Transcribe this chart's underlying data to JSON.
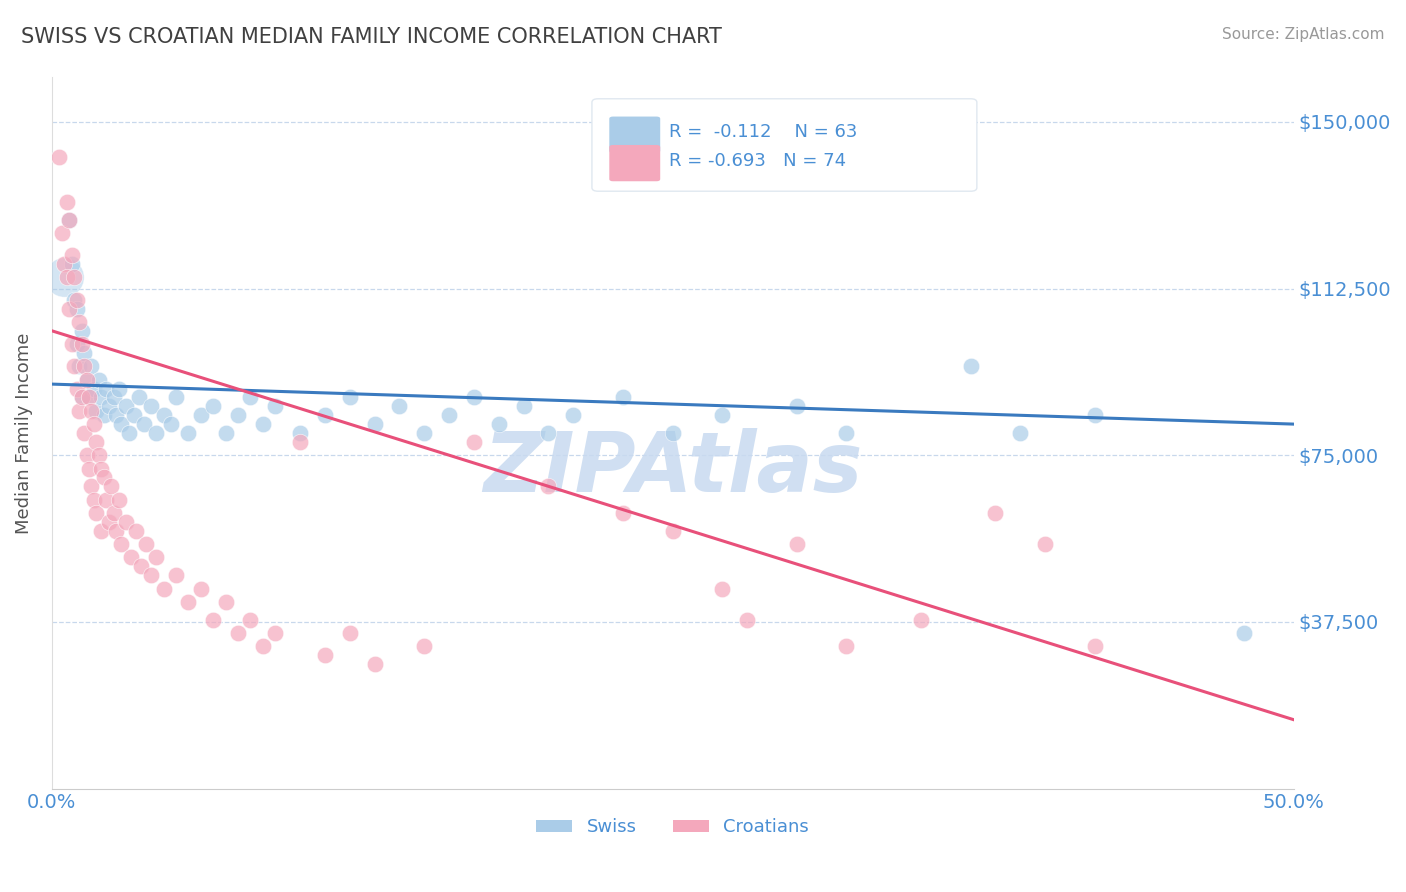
{
  "title": "SWISS VS CROATIAN MEDIAN FAMILY INCOME CORRELATION CHART",
  "source": "Source: ZipAtlas.com",
  "ylabel": "Median Family Income",
  "xlim": [
    0.0,
    0.5
  ],
  "ylim": [
    0,
    160000
  ],
  "yticks": [
    37500,
    75000,
    112500,
    150000
  ],
  "ytick_labels": [
    "$37,500",
    "$75,000",
    "$112,500",
    "$150,000"
  ],
  "xtick_left_label": "0.0%",
  "xtick_right_label": "50.0%",
  "swiss_color": "#aacce8",
  "croatian_color": "#f4a8bc",
  "swiss_line_color": "#3a7abf",
  "croatian_line_color": "#e8507a",
  "croatian_line_dashed_color": "#e8b0c0",
  "watermark": "ZIPAtlas",
  "watermark_color": "#c8daf0",
  "legend_R_swiss": "R =  -0.112",
  "legend_N_swiss": "N = 63",
  "legend_R_croatian": "R = -0.693",
  "legend_N_croatian": "N = 74",
  "title_color": "#404040",
  "axis_label_color": "#4a8fd4",
  "tick_label_color": "#4a8fd4",
  "grid_color": "#c8d8ec",
  "background_color": "#ffffff",
  "swiss_intercept": 91000,
  "swiss_slope": -18000,
  "croatian_intercept": 103000,
  "croatian_slope": -175000,
  "swiss_points": [
    [
      0.005,
      115000
    ],
    [
      0.007,
      128000
    ],
    [
      0.008,
      118000
    ],
    [
      0.009,
      110000
    ],
    [
      0.01,
      108000
    ],
    [
      0.01,
      100000
    ],
    [
      0.011,
      95000
    ],
    [
      0.012,
      103000
    ],
    [
      0.012,
      88000
    ],
    [
      0.013,
      98000
    ],
    [
      0.014,
      92000
    ],
    [
      0.015,
      88000
    ],
    [
      0.016,
      95000
    ],
    [
      0.017,
      90000
    ],
    [
      0.018,
      85000
    ],
    [
      0.019,
      92000
    ],
    [
      0.02,
      88000
    ],
    [
      0.021,
      84000
    ],
    [
      0.022,
      90000
    ],
    [
      0.023,
      86000
    ],
    [
      0.025,
      88000
    ],
    [
      0.026,
      84000
    ],
    [
      0.027,
      90000
    ],
    [
      0.028,
      82000
    ],
    [
      0.03,
      86000
    ],
    [
      0.031,
      80000
    ],
    [
      0.033,
      84000
    ],
    [
      0.035,
      88000
    ],
    [
      0.037,
      82000
    ],
    [
      0.04,
      86000
    ],
    [
      0.042,
      80000
    ],
    [
      0.045,
      84000
    ],
    [
      0.048,
      82000
    ],
    [
      0.05,
      88000
    ],
    [
      0.055,
      80000
    ],
    [
      0.06,
      84000
    ],
    [
      0.065,
      86000
    ],
    [
      0.07,
      80000
    ],
    [
      0.075,
      84000
    ],
    [
      0.08,
      88000
    ],
    [
      0.085,
      82000
    ],
    [
      0.09,
      86000
    ],
    [
      0.1,
      80000
    ],
    [
      0.11,
      84000
    ],
    [
      0.12,
      88000
    ],
    [
      0.13,
      82000
    ],
    [
      0.14,
      86000
    ],
    [
      0.15,
      80000
    ],
    [
      0.16,
      84000
    ],
    [
      0.17,
      88000
    ],
    [
      0.18,
      82000
    ],
    [
      0.19,
      86000
    ],
    [
      0.2,
      80000
    ],
    [
      0.21,
      84000
    ],
    [
      0.23,
      88000
    ],
    [
      0.25,
      80000
    ],
    [
      0.27,
      84000
    ],
    [
      0.3,
      86000
    ],
    [
      0.32,
      80000
    ],
    [
      0.37,
      95000
    ],
    [
      0.39,
      80000
    ],
    [
      0.42,
      84000
    ],
    [
      0.48,
      35000
    ]
  ],
  "croatian_points": [
    [
      0.003,
      142000
    ],
    [
      0.004,
      125000
    ],
    [
      0.005,
      118000
    ],
    [
      0.006,
      132000
    ],
    [
      0.006,
      115000
    ],
    [
      0.007,
      128000
    ],
    [
      0.007,
      108000
    ],
    [
      0.008,
      120000
    ],
    [
      0.008,
      100000
    ],
    [
      0.009,
      115000
    ],
    [
      0.009,
      95000
    ],
    [
      0.01,
      110000
    ],
    [
      0.01,
      90000
    ],
    [
      0.011,
      105000
    ],
    [
      0.011,
      85000
    ],
    [
      0.012,
      100000
    ],
    [
      0.012,
      88000
    ],
    [
      0.013,
      95000
    ],
    [
      0.013,
      80000
    ],
    [
      0.014,
      92000
    ],
    [
      0.014,
      75000
    ],
    [
      0.015,
      88000
    ],
    [
      0.015,
      72000
    ],
    [
      0.016,
      85000
    ],
    [
      0.016,
      68000
    ],
    [
      0.017,
      82000
    ],
    [
      0.017,
      65000
    ],
    [
      0.018,
      78000
    ],
    [
      0.018,
      62000
    ],
    [
      0.019,
      75000
    ],
    [
      0.02,
      72000
    ],
    [
      0.02,
      58000
    ],
    [
      0.021,
      70000
    ],
    [
      0.022,
      65000
    ],
    [
      0.023,
      60000
    ],
    [
      0.024,
      68000
    ],
    [
      0.025,
      62000
    ],
    [
      0.026,
      58000
    ],
    [
      0.027,
      65000
    ],
    [
      0.028,
      55000
    ],
    [
      0.03,
      60000
    ],
    [
      0.032,
      52000
    ],
    [
      0.034,
      58000
    ],
    [
      0.036,
      50000
    ],
    [
      0.038,
      55000
    ],
    [
      0.04,
      48000
    ],
    [
      0.042,
      52000
    ],
    [
      0.045,
      45000
    ],
    [
      0.05,
      48000
    ],
    [
      0.055,
      42000
    ],
    [
      0.06,
      45000
    ],
    [
      0.065,
      38000
    ],
    [
      0.07,
      42000
    ],
    [
      0.075,
      35000
    ],
    [
      0.08,
      38000
    ],
    [
      0.085,
      32000
    ],
    [
      0.09,
      35000
    ],
    [
      0.1,
      78000
    ],
    [
      0.11,
      30000
    ],
    [
      0.12,
      35000
    ],
    [
      0.13,
      28000
    ],
    [
      0.15,
      32000
    ],
    [
      0.17,
      78000
    ],
    [
      0.2,
      68000
    ],
    [
      0.23,
      62000
    ],
    [
      0.25,
      58000
    ],
    [
      0.27,
      45000
    ],
    [
      0.28,
      38000
    ],
    [
      0.3,
      55000
    ],
    [
      0.32,
      32000
    ],
    [
      0.35,
      38000
    ],
    [
      0.38,
      62000
    ],
    [
      0.4,
      55000
    ],
    [
      0.42,
      32000
    ]
  ]
}
